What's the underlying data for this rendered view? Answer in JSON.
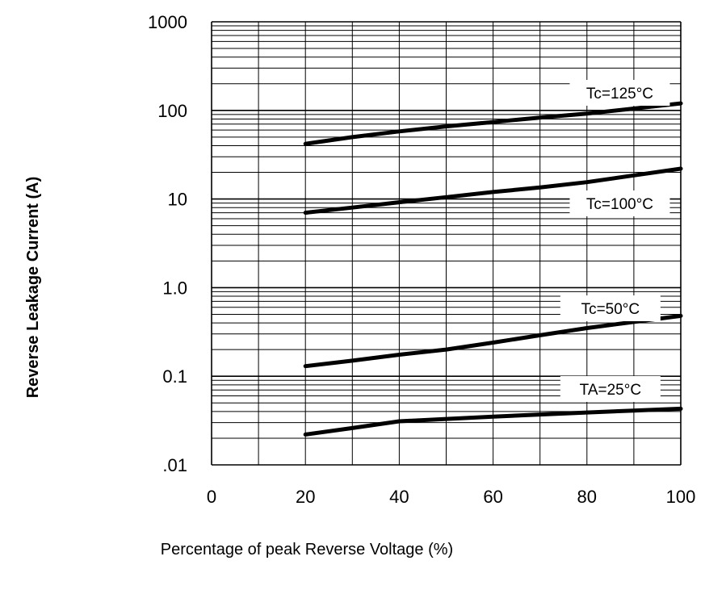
{
  "chart_data": {
    "type": "line",
    "title": "",
    "xlabel": "Percentage of peak Reverse Voltage (%)",
    "ylabel": "Reverse Leakage Current (A)",
    "x_ticks": [
      "0",
      "20",
      "40",
      "60",
      "80",
      "100"
    ],
    "y_ticks": [
      {
        "value": 1000,
        "label": "1000"
      },
      {
        "value": 100,
        "label": "100"
      },
      {
        "value": 10,
        "label": "10"
      },
      {
        "value": 1,
        "label": "1.0"
      },
      {
        "value": 0.1,
        "label": "0.1"
      },
      {
        "value": 0.01,
        "label": ".01"
      }
    ],
    "xlim": [
      0,
      100
    ],
    "ylim": [
      0.01,
      1000
    ],
    "y_scale": "log",
    "grid": true,
    "series": [
      {
        "name": "Tc=125°C",
        "x": [
          20,
          30,
          40,
          50,
          60,
          70,
          80,
          90,
          100
        ],
        "y": [
          42,
          50,
          58,
          66,
          74,
          83,
          92,
          105,
          120
        ]
      },
      {
        "name": "Tc=100°C",
        "x": [
          20,
          30,
          40,
          50,
          60,
          70,
          80,
          90,
          100
        ],
        "y": [
          7.0,
          8.0,
          9.2,
          10.5,
          12.0,
          13.5,
          15.5,
          18.5,
          22
        ]
      },
      {
        "name": "Tc=50°C",
        "x": [
          20,
          30,
          40,
          50,
          60,
          70,
          80,
          90,
          100
        ],
        "y": [
          0.13,
          0.15,
          0.175,
          0.2,
          0.24,
          0.29,
          0.35,
          0.41,
          0.48
        ]
      },
      {
        "name": "TA=25°C",
        "x": [
          20,
          30,
          40,
          50,
          60,
          70,
          80,
          90,
          100
        ],
        "y": [
          0.022,
          0.026,
          0.031,
          0.033,
          0.035,
          0.037,
          0.039,
          0.041,
          0.043
        ]
      }
    ]
  }
}
